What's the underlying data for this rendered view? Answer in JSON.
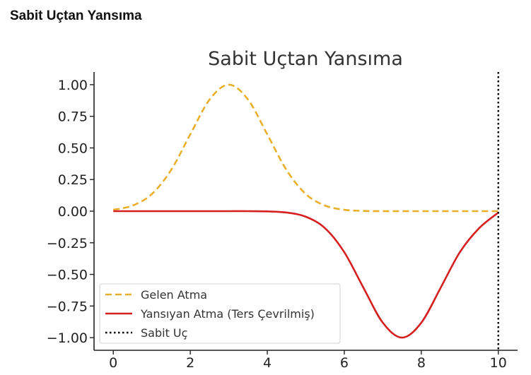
{
  "header": {
    "title": "Sabit Uçtan Yansıma"
  },
  "chart_data": {
    "type": "line",
    "title": "Sabit Uçtan Yansıma",
    "xlabel": "",
    "ylabel": "",
    "xlim": [
      -0.5,
      10.5
    ],
    "ylim": [
      -1.1,
      1.1
    ],
    "grid": false,
    "legend_position": "lower-left",
    "x_ticks": [
      0,
      2,
      4,
      6,
      8,
      10
    ],
    "x_tick_labels": [
      "0",
      "2",
      "4",
      "6",
      "8",
      "10"
    ],
    "y_ticks": [
      1.0,
      0.75,
      0.5,
      0.25,
      0.0,
      -0.25,
      -0.5,
      -0.75,
      -1.0
    ],
    "y_tick_labels": [
      "1.00",
      "0.75",
      "0.50",
      "0.25",
      "0.00",
      "−0.25",
      "−0.50",
      "−0.75",
      "−1.00"
    ],
    "x": [
      0,
      0.5,
      1,
      1.5,
      2,
      2.5,
      3,
      3.5,
      4,
      4.5,
      5,
      5.5,
      6,
      6.5,
      7,
      7.5,
      8,
      8.5,
      9,
      9.5,
      10
    ],
    "series": [
      {
        "name": "Gelen Atma",
        "color": "#e8b02a",
        "style": "dashed",
        "values": [
          0.011,
          0.044,
          0.135,
          0.325,
          0.607,
          0.882,
          1.0,
          0.882,
          0.607,
          0.325,
          0.135,
          0.044,
          0.011,
          0.002,
          0.0,
          0.0,
          0.0,
          0.0,
          0.0,
          0.0,
          0.0
        ]
      },
      {
        "name": "Yansıyan Atma (Ters Çevrilmiş)",
        "color": "#d62020",
        "style": "solid",
        "values": [
          0.0,
          0.0,
          0.0,
          0.0,
          0.0,
          0.0,
          0.0,
          0.0,
          -0.002,
          -0.011,
          -0.044,
          -0.135,
          -0.325,
          -0.607,
          -0.882,
          -1.0,
          -0.882,
          -0.607,
          -0.325,
          -0.135,
          -0.011
        ]
      }
    ],
    "vertical_line": {
      "name": "Sabit Uç",
      "x": 10,
      "color": "#000000",
      "style": "dotted"
    }
  }
}
